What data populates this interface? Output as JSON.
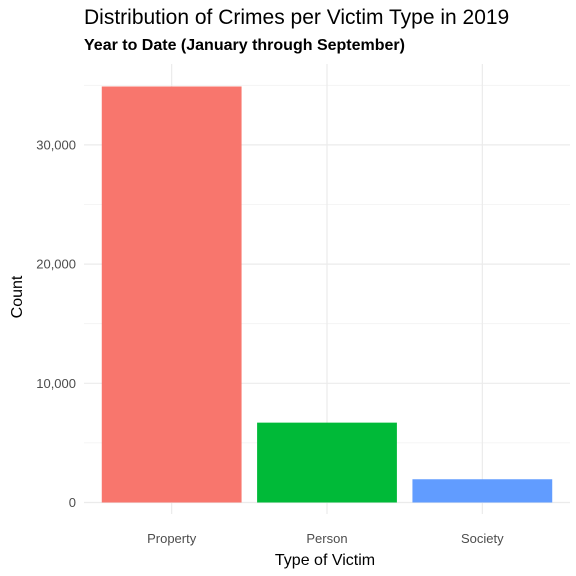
{
  "chart_data": {
    "type": "bar",
    "title": "Distribution of Crimes per Victim Type in 2019",
    "subtitle": "Year to Date (January through September)",
    "xlabel": "Type of Victim",
    "ylabel": "Count",
    "categories": [
      "Property",
      "Person",
      "Society"
    ],
    "values": [
      34900,
      6700,
      1950
    ],
    "colors": [
      "#F8766D",
      "#00BA38",
      "#619CFF"
    ],
    "ylim": [
      0,
      36600
    ],
    "yticks": [
      0,
      10000,
      20000,
      30000
    ],
    "ytick_labels": [
      "0",
      "10,000",
      "20,000",
      "30,000"
    ],
    "grid": true,
    "legend": "none"
  }
}
